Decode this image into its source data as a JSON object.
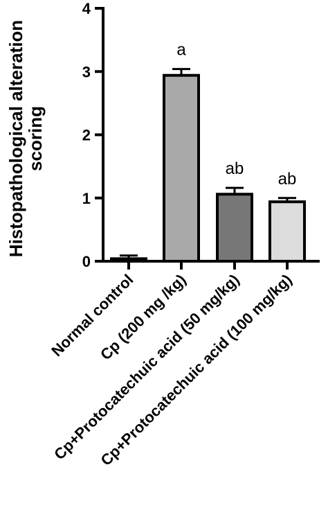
{
  "chart_data": {
    "type": "bar",
    "ylabel_lines": [
      "Histopathological alteration",
      "scoring"
    ],
    "ylim": [
      0,
      4
    ],
    "yticks": [
      "0",
      "1",
      "2",
      "3",
      "4"
    ],
    "categories": [
      "Normal control",
      "Cp (200 mg /kg)",
      "Cp+Protocatechuic acid (50 mg/kg)",
      "Cp+Protocatechuic acid (100 mg/kg)"
    ],
    "values": [
      0.04,
      2.94,
      1.06,
      0.94
    ],
    "errors": [
      0.05,
      0.1,
      0.1,
      0.06
    ],
    "significance": [
      "",
      "a",
      "ab",
      "ab"
    ],
    "colors": [
      "#8c8c8c",
      "#a9a9a9",
      "#777777",
      "#dcdcdc"
    ],
    "grid": false
  }
}
